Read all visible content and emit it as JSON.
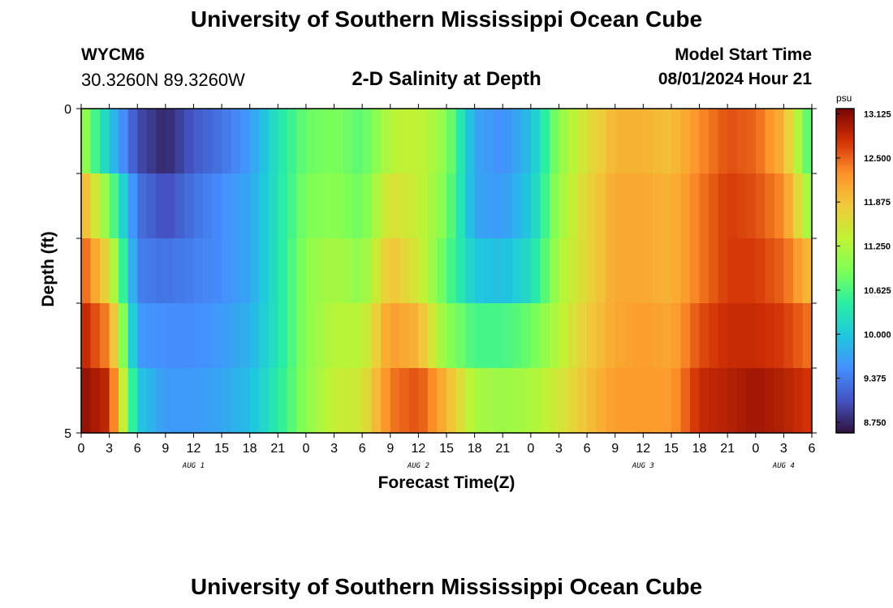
{
  "header": {
    "title": "University of Southern Mississippi Ocean Cube",
    "station": "WYCM6",
    "coords": "30.3260N  89.3260W",
    "subtitle": "2-D Salinity at Depth",
    "start_label": "Model Start Time",
    "start_value": "08/01/2024 Hour 21"
  },
  "footer": {
    "title": "University of Southern Mississippi Ocean Cube"
  },
  "colorbar": {
    "unit": "psu",
    "ticks": [
      "13.125",
      "12.500",
      "11.875",
      "11.250",
      "10.625",
      "10.000",
      "9.375",
      "8.750"
    ],
    "range": [
      8.6,
      13.2
    ]
  },
  "chart_data": {
    "type": "heatmap",
    "title": "2-D Salinity at Depth",
    "xlabel": "Forecast Time(Z)",
    "ylabel": "Depth (ft)",
    "ylim": [
      0,
      5
    ],
    "y_ticks": [
      "0",
      "5"
    ],
    "x_ticks": [
      "0",
      "3",
      "6",
      "9",
      "12",
      "15",
      "18",
      "21",
      "0",
      "3",
      "6",
      "9",
      "12",
      "15",
      "18",
      "21",
      "0",
      "3",
      "6",
      "9",
      "12",
      "15",
      "18",
      "21",
      "0",
      "3",
      "6"
    ],
    "date_labels": [
      {
        "label": "AUG 1",
        "hour": 12
      },
      {
        "label": "AUG 2",
        "hour": 36
      },
      {
        "label": "AUG 3",
        "hour": 60
      },
      {
        "label": "AUG 4",
        "hour": 75
      }
    ],
    "hours": [
      0,
      3,
      6,
      9,
      12,
      15,
      18,
      21,
      24,
      27,
      30,
      33,
      36,
      39,
      42,
      45,
      48,
      51,
      54,
      57,
      60,
      63,
      66,
      69,
      72,
      75,
      78
    ],
    "depth_layers": [
      0.5,
      1.5,
      2.5,
      3.5,
      4.5
    ],
    "values": [
      [
        11.2,
        10.0,
        9.0,
        8.75,
        9.1,
        9.3,
        9.6,
        10.3,
        10.8,
        10.9,
        10.7,
        11.3,
        11.4,
        11.0,
        9.7,
        9.5,
        9.9,
        11.0,
        11.6,
        12.0,
        12.0,
        11.9,
        12.3,
        12.6,
        12.5,
        12.0,
        10.5
      ],
      [
        12.1,
        10.9,
        9.3,
        9.0,
        9.3,
        9.5,
        9.7,
        10.3,
        10.9,
        11.0,
        10.8,
        11.6,
        11.4,
        10.9,
        9.7,
        9.6,
        10.0,
        11.1,
        11.7,
        12.1,
        12.1,
        12.0,
        12.4,
        12.7,
        12.6,
        12.3,
        11.0
      ],
      [
        12.6,
        11.6,
        9.4,
        9.3,
        9.4,
        9.5,
        9.7,
        10.3,
        11.0,
        11.2,
        11.0,
        11.9,
        11.5,
        10.7,
        10.0,
        9.9,
        10.2,
        11.2,
        11.7,
        12.1,
        12.1,
        12.0,
        12.4,
        12.7,
        12.7,
        12.5,
        11.9
      ],
      [
        12.9,
        12.3,
        9.6,
        9.5,
        9.5,
        9.6,
        9.8,
        10.3,
        11.0,
        11.3,
        11.3,
        12.2,
        12.0,
        11.0,
        10.6,
        10.6,
        10.8,
        11.3,
        11.8,
        12.1,
        12.2,
        12.1,
        12.6,
        12.8,
        12.8,
        12.7,
        12.4
      ],
      [
        13.1,
        12.8,
        10.0,
        9.6,
        9.6,
        9.7,
        9.9,
        10.4,
        11.0,
        11.4,
        11.5,
        12.4,
        12.6,
        12.0,
        11.2,
        11.1,
        11.2,
        11.5,
        11.9,
        12.2,
        12.2,
        12.2,
        12.8,
        12.9,
        13.0,
        12.9,
        12.7
      ]
    ]
  }
}
